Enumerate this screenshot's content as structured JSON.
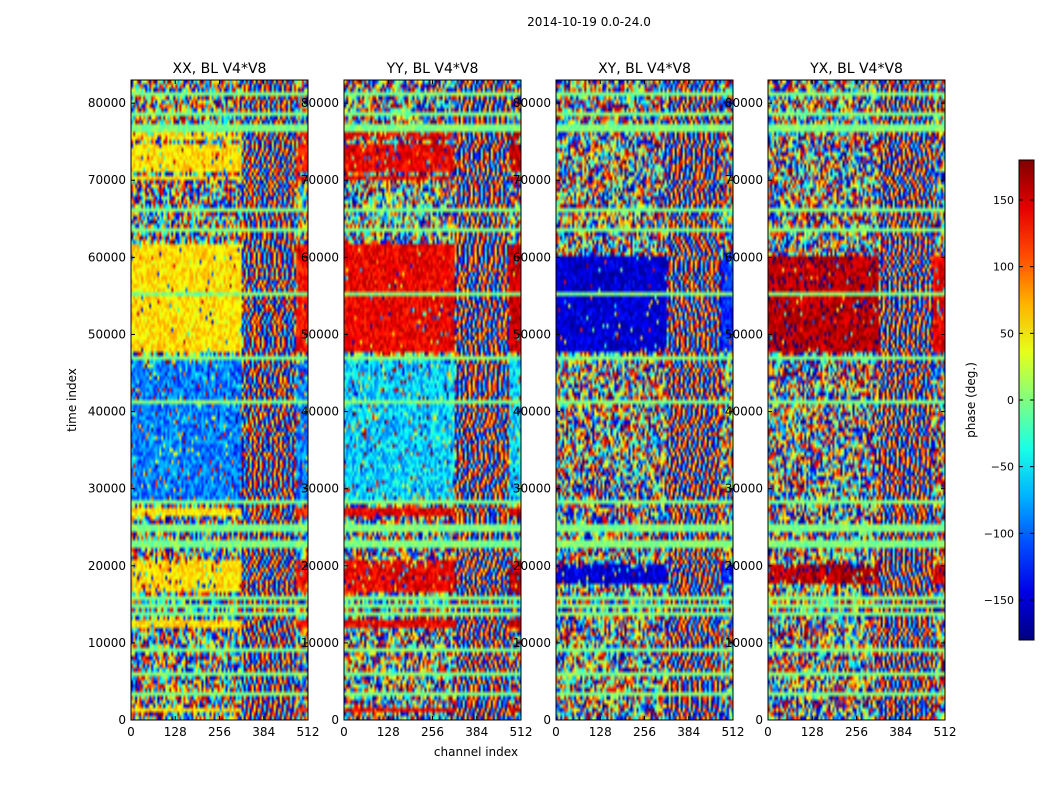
{
  "figure": {
    "suptitle": "2014-10-19 0.0-24.0"
  },
  "chart_data": {
    "type": "heatmap",
    "xlabel": "channel index",
    "ylabel": "time index",
    "x_range": [
      0,
      512
    ],
    "y_range": [
      0,
      83000
    ],
    "x_ticks": [
      "0",
      "128",
      "256",
      "384",
      "512"
    ],
    "x_tick_values": [
      0,
      128,
      256,
      384,
      512
    ],
    "y_ticks": [
      "0",
      "10000",
      "20000",
      "30000",
      "40000",
      "50000",
      "60000",
      "70000",
      "80000"
    ],
    "y_tick_values": [
      0,
      10000,
      20000,
      30000,
      40000,
      50000,
      60000,
      70000,
      80000
    ],
    "panels": [
      {
        "title": "XX, BL V4*V8",
        "pol": "XX",
        "left_phase": 55,
        "right_phase": 130
      },
      {
        "title": "YY, BL V4*V8",
        "pol": "YY",
        "left_phase": 140,
        "right_phase": 155
      },
      {
        "title": "XY, BL V4*V8",
        "pol": "XY",
        "left_phase": -150,
        "right_phase": -120
      },
      {
        "title": "YX, BL V4*V8",
        "pol": "YX",
        "left_phase": 160,
        "right_phase": 140
      }
    ],
    "colorbar": {
      "label": "phase (deg.)",
      "range": [
        -180,
        180
      ],
      "ticks": [
        "150",
        "100",
        "50",
        "0",
        "−50",
        "−100",
        "−150"
      ],
      "tick_values": [
        150,
        100,
        50,
        0,
        -50,
        -100,
        -150
      ],
      "colormap": "jet"
    }
  }
}
